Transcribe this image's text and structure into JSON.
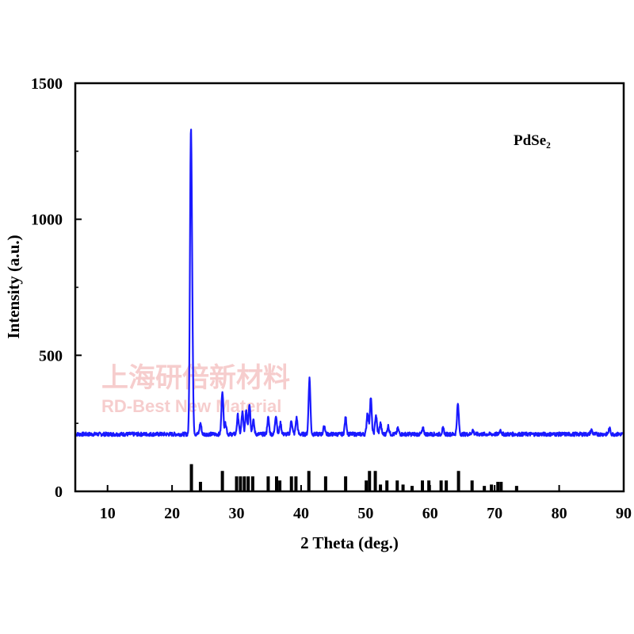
{
  "chart_data": {
    "type": "line",
    "title": "",
    "legend_label": "PdSe₂",
    "xlabel": "2 Theta (deg.)",
    "ylabel": "Intensity (a.u.)",
    "xlim": [
      5,
      90
    ],
    "ylim": [
      0,
      1500
    ],
    "x_ticks": [
      10,
      20,
      30,
      40,
      50,
      60,
      70,
      80,
      90
    ],
    "y_ticks": [
      0,
      500,
      1000,
      1500
    ],
    "colors": {
      "pattern": "#1a1aff",
      "reference": "#000000",
      "axis": "#000000"
    },
    "watermark": {
      "cn": "上海研倍新材料",
      "en": "RD-Best New Material"
    },
    "series": [
      {
        "kind": "xrd-pattern",
        "baseline": 210,
        "peaks": [
          {
            "x": 22.9,
            "y": 1190
          },
          {
            "x": 23.1,
            "y": 570
          },
          {
            "x": 24.4,
            "y": 250
          },
          {
            "x": 27.8,
            "y": 370
          },
          {
            "x": 28.3,
            "y": 250
          },
          {
            "x": 30.2,
            "y": 280
          },
          {
            "x": 30.9,
            "y": 290
          },
          {
            "x": 31.5,
            "y": 300
          },
          {
            "x": 32.0,
            "y": 320
          },
          {
            "x": 32.6,
            "y": 260
          },
          {
            "x": 34.9,
            "y": 270
          },
          {
            "x": 36.1,
            "y": 280
          },
          {
            "x": 36.8,
            "y": 250
          },
          {
            "x": 38.5,
            "y": 260
          },
          {
            "x": 39.3,
            "y": 270
          },
          {
            "x": 41.3,
            "y": 415
          },
          {
            "x": 43.6,
            "y": 240
          },
          {
            "x": 46.9,
            "y": 270
          },
          {
            "x": 50.3,
            "y": 290
          },
          {
            "x": 50.8,
            "y": 345
          },
          {
            "x": 51.6,
            "y": 280
          },
          {
            "x": 52.3,
            "y": 250
          },
          {
            "x": 53.5,
            "y": 240
          },
          {
            "x": 55.0,
            "y": 230
          },
          {
            "x": 58.9,
            "y": 230
          },
          {
            "x": 62.0,
            "y": 230
          },
          {
            "x": 64.3,
            "y": 320
          },
          {
            "x": 66.6,
            "y": 225
          },
          {
            "x": 70.9,
            "y": 225
          },
          {
            "x": 85.0,
            "y": 225
          },
          {
            "x": 87.8,
            "y": 230
          }
        ]
      },
      {
        "kind": "reference-sticks",
        "sticks": [
          {
            "x": 23.0,
            "y": 100
          },
          {
            "x": 24.4,
            "y": 35
          },
          {
            "x": 27.8,
            "y": 75
          },
          {
            "x": 30.0,
            "y": 55
          },
          {
            "x": 30.6,
            "y": 55
          },
          {
            "x": 31.2,
            "y": 55
          },
          {
            "x": 31.8,
            "y": 55
          },
          {
            "x": 32.5,
            "y": 55
          },
          {
            "x": 34.9,
            "y": 55
          },
          {
            "x": 36.2,
            "y": 55
          },
          {
            "x": 36.7,
            "y": 40
          },
          {
            "x": 38.5,
            "y": 55
          },
          {
            "x": 39.2,
            "y": 55
          },
          {
            "x": 41.2,
            "y": 75
          },
          {
            "x": 43.8,
            "y": 55
          },
          {
            "x": 46.9,
            "y": 55
          },
          {
            "x": 50.1,
            "y": 40
          },
          {
            "x": 50.6,
            "y": 75
          },
          {
            "x": 51.5,
            "y": 75
          },
          {
            "x": 52.3,
            "y": 25
          },
          {
            "x": 53.3,
            "y": 40
          },
          {
            "x": 54.9,
            "y": 40
          },
          {
            "x": 55.8,
            "y": 25
          },
          {
            "x": 57.2,
            "y": 20
          },
          {
            "x": 58.8,
            "y": 40
          },
          {
            "x": 59.8,
            "y": 40
          },
          {
            "x": 61.7,
            "y": 40
          },
          {
            "x": 62.5,
            "y": 40
          },
          {
            "x": 64.4,
            "y": 75
          },
          {
            "x": 66.5,
            "y": 40
          },
          {
            "x": 68.4,
            "y": 20
          },
          {
            "x": 69.5,
            "y": 25
          },
          {
            "x": 70.5,
            "y": 35
          },
          {
            "x": 71.0,
            "y": 35
          },
          {
            "x": 73.4,
            "y": 20
          }
        ]
      }
    ]
  }
}
